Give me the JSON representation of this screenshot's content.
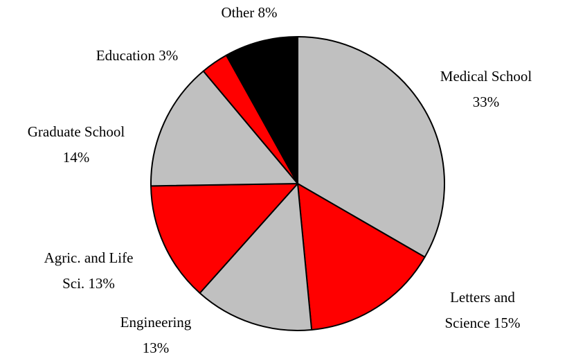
{
  "chart_data": {
    "type": "pie",
    "categories": [
      "Medical School",
      "Letters and Science",
      "Engineering",
      "Agric. and Life Sci.",
      "Graduate School",
      "Education",
      "Other"
    ],
    "values": [
      33,
      15,
      13,
      13,
      14,
      3,
      8
    ],
    "value_labels": [
      "33%",
      "15%",
      "13%",
      "13%",
      "14%",
      "3%",
      "8%"
    ],
    "colors": [
      "#c0c0c0",
      "#ff0000",
      "#c0c0c0",
      "#ff0000",
      "#c0c0c0",
      "#ff0000",
      "#000000"
    ]
  }
}
